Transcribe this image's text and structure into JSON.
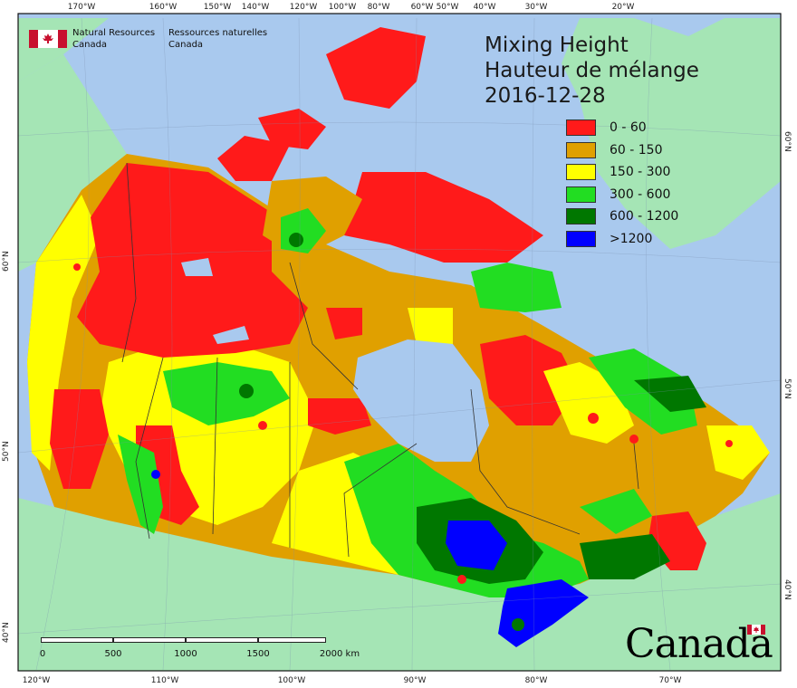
{
  "title": {
    "line1": "Mixing Height",
    "line2": "Hauteur de mélange",
    "date": "2016-12-28"
  },
  "agency": {
    "en_line1": "Natural Resources",
    "en_line2": "Canada",
    "fr_line1": "Ressources naturelles",
    "fr_line2": "Canada"
  },
  "legend": [
    {
      "label": "0 - 60",
      "color": "#ff1a1a"
    },
    {
      "label": "60 - 150",
      "color": "#e0a000"
    },
    {
      "label": "150 - 300",
      "color": "#ffff00"
    },
    {
      "label": "300 - 600",
      "color": "#22dd22"
    },
    {
      "label": "600 - 1200",
      "color": "#007700"
    },
    {
      "label": ">1200",
      "color": "#0000ff"
    }
  ],
  "graticule": {
    "top_labels": [
      "170°W",
      "160°W",
      "150°W",
      "140°W",
      "120°W",
      "100°W",
      "80°W",
      "60°W",
      "50°W",
      "40°W",
      "30°W",
      "20°W"
    ],
    "bottom_labels": [
      "120°W",
      "110°W",
      "100°W",
      "90°W",
      "80°W",
      "70°W"
    ],
    "left_labels": [
      "60°N",
      "50°N",
      "40°N"
    ],
    "right_labels": [
      "60°N",
      "50°N",
      "40°N"
    ]
  },
  "scalebar": {
    "labels": [
      "0",
      "500",
      "1000",
      "1500",
      "2000 km"
    ]
  },
  "wordmark": "Canada",
  "colors": {
    "ocean": "#a9c9ee",
    "land_outside": "#a5e5b5",
    "frame": "#111111"
  }
}
